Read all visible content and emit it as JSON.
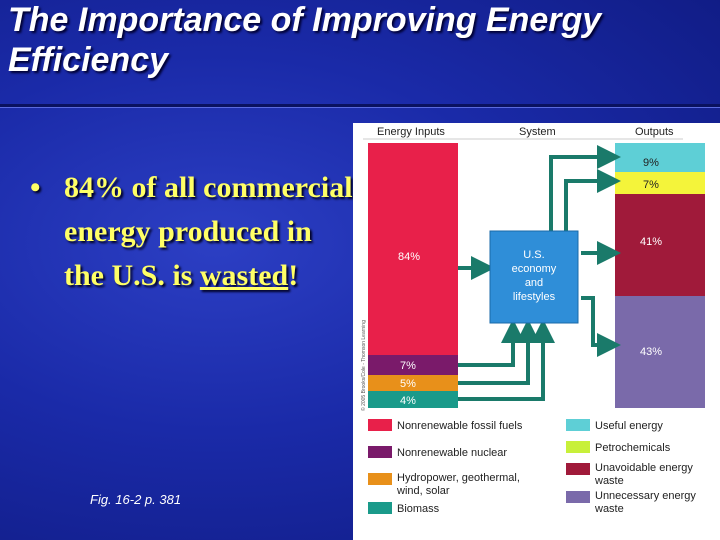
{
  "slide": {
    "title_line1": "The Importance of Improving Energy",
    "title_line2": "Efficiency",
    "bullet_symbol": "•",
    "bullet_text_before": "84% of all commercial energy produced in the U.S. is ",
    "bullet_emphasis": "wasted",
    "bullet_text_after": "!",
    "caption": "Fig. 16-2 p. 381"
  },
  "figure": {
    "header_inputs": "Energy Inputs",
    "header_system": "System",
    "header_outputs": "Outputs",
    "side_credit": "© 2005 Brooks/Cole - Thomson Learning",
    "system_box": [
      "U.S.",
      "economy",
      "and",
      "lifestyles"
    ],
    "inputs": [
      {
        "label": "84%",
        "color": "#e8204a"
      },
      {
        "label": "7%",
        "color": "#7a1a6a"
      },
      {
        "label": "5%",
        "color": "#e8901a"
      },
      {
        "label": "4%",
        "color": "#1a9a8a"
      }
    ],
    "outputs": [
      {
        "label": "9%",
        "color": "#5ecfd6"
      },
      {
        "label": "7%",
        "color": "#f4f43a"
      },
      {
        "label": "41%",
        "color": "#a01a3a"
      },
      {
        "label": "43%",
        "color": "#7a6aaa"
      }
    ],
    "legend": [
      {
        "label": "Nonrenewable fossil fuels",
        "color": "#e8204a"
      },
      {
        "label": "Useful energy",
        "color": "#5ecfd6"
      },
      {
        "label": "Nonrenewable nuclear",
        "color": "#7a1a6a"
      },
      {
        "label": "Petrochemicals",
        "color": "#c8f03a"
      },
      {
        "label": "Hydropower, geothermal, wind, solar",
        "line1": "Hydropower, geothermal,",
        "line2": "wind, solar",
        "color": "#e8901a"
      },
      {
        "label": "Unavoidable energy waste",
        "line1": "Unavoidable energy",
        "line2": "waste",
        "color": "#a01a3a"
      },
      {
        "label": "Biomass",
        "color": "#1a9a8a"
      },
      {
        "label": "Unnecessary energy waste",
        "line1": "Unnecessary energy",
        "line2": "waste",
        "color": "#7a6aaa"
      }
    ]
  }
}
